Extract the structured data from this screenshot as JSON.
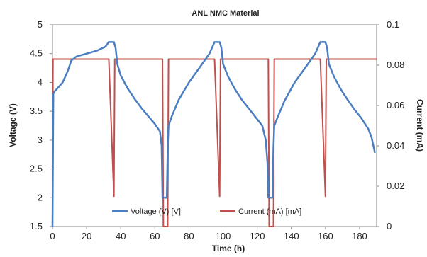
{
  "chart_data": {
    "type": "line",
    "title": "ANL NMC Material",
    "xlabel": "Time (h)",
    "ylabel": "Voltage (V)",
    "y2label": "Current (mA)",
    "xlim": [
      0,
      190
    ],
    "ylim": [
      1.5,
      5
    ],
    "y2lim": [
      0,
      0.1
    ],
    "x_ticks": [
      "0",
      "20",
      "40",
      "60",
      "80",
      "100",
      "120",
      "140",
      "160",
      "180"
    ],
    "y_ticks": [
      "1.5",
      "2",
      "2.5",
      "3",
      "3.5",
      "4",
      "4.5",
      "5"
    ],
    "y2_ticks": [
      "0",
      "0.02",
      "0.04",
      "0.06",
      "0.08",
      "0.1"
    ],
    "grid": false,
    "legend_position": "bottom-center",
    "colors": {
      "voltage": "#4a7ec0",
      "current": "#c0504d"
    },
    "series": [
      {
        "name": "Voltage (V) [V]",
        "axis": "left",
        "x": [
          0,
          0.5,
          1,
          3,
          6,
          9,
          11,
          14,
          20,
          26,
          31,
          33,
          36,
          37,
          38,
          40,
          44,
          48,
          52,
          56,
          60,
          63,
          64,
          64.5,
          67,
          67.5,
          68,
          70,
          74,
          80,
          86,
          92,
          95,
          98,
          99,
          100,
          103,
          107,
          111,
          115,
          119,
          123,
          125,
          126,
          126.5,
          129,
          129.5,
          130,
          132,
          136,
          142,
          148,
          154,
          157,
          160,
          161,
          162,
          165,
          169,
          173,
          177,
          181,
          185,
          187,
          189
        ],
        "y": [
          1.5,
          3.8,
          3.84,
          3.9,
          4.0,
          4.2,
          4.38,
          4.45,
          4.5,
          4.55,
          4.62,
          4.7,
          4.7,
          4.6,
          4.32,
          4.12,
          3.9,
          3.72,
          3.56,
          3.42,
          3.28,
          3.15,
          2.9,
          2.0,
          2.0,
          2.85,
          3.25,
          3.42,
          3.7,
          4.0,
          4.25,
          4.5,
          4.7,
          4.7,
          4.6,
          4.32,
          4.1,
          3.88,
          3.7,
          3.55,
          3.4,
          3.25,
          3.0,
          2.6,
          2.0,
          2.0,
          2.85,
          3.25,
          3.4,
          3.68,
          4.0,
          4.25,
          4.5,
          4.7,
          4.7,
          4.6,
          4.32,
          4.1,
          3.88,
          3.7,
          3.53,
          3.38,
          3.2,
          3.05,
          2.78
        ]
      },
      {
        "name": "Current (mA) [mA]",
        "axis": "right",
        "x": [
          0,
          0.3,
          1,
          32.5,
          33,
          36,
          36.5,
          37,
          64.5,
          65,
          67.5,
          68,
          94.5,
          95,
          98,
          98.5,
          99,
          126.5,
          127,
          129.5,
          130,
          156.5,
          157,
          160,
          160.5,
          161,
          190
        ],
        "y": [
          0,
          0.083,
          0.083,
          0.083,
          0.083,
          0.015,
          0.083,
          0.083,
          0.083,
          0,
          0,
          0.083,
          0.083,
          0.083,
          0.015,
          0.083,
          0.083,
          0.083,
          0,
          0,
          0.083,
          0.083,
          0.083,
          0.015,
          0.083,
          0.083,
          0.083
        ]
      }
    ]
  }
}
